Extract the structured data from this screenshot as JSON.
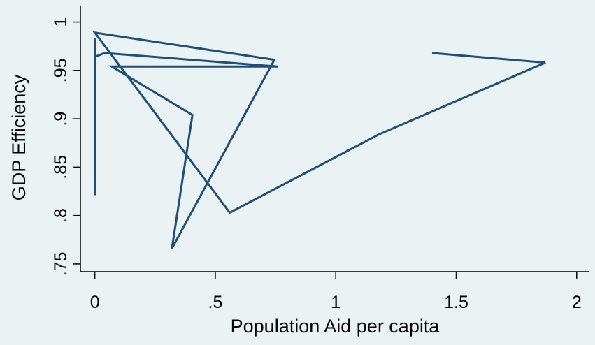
{
  "chart_data": {
    "type": "line",
    "title": "",
    "xlabel": "Population Aid per capita",
    "ylabel": "GDP Efficiency",
    "xlim": [
      -0.06,
      2.05
    ],
    "ylim": [
      0.742,
      1.017
    ],
    "xticks": [
      0,
      0.5,
      1,
      1.5,
      2
    ],
    "xtick_labels": [
      "0",
      ".5",
      "1",
      "1.5",
      "2"
    ],
    "yticks": [
      0.75,
      0.8,
      0.85,
      0.9,
      0.95,
      1
    ],
    "ytick_labels": [
      ".75",
      ".8",
      ".85",
      ".9",
      ".95",
      "1"
    ],
    "grid": false,
    "legend": "none",
    "series": [
      {
        "color": "#1f4e79",
        "points": [
          [
            1.4,
            0.968
          ],
          [
            1.87,
            0.958
          ],
          [
            1.18,
            0.884
          ],
          [
            0.56,
            0.803
          ],
          [
            0.0,
            0.989
          ],
          [
            0.745,
            0.961
          ],
          [
            0.32,
            0.766
          ],
          [
            0.405,
            0.904
          ],
          [
            0.07,
            0.954
          ],
          [
            0.76,
            0.954
          ],
          [
            0.04,
            0.968
          ],
          [
            0.0,
            0.964
          ],
          [
            0.0,
            0.983
          ],
          [
            0.0,
            0.821
          ]
        ]
      }
    ]
  }
}
